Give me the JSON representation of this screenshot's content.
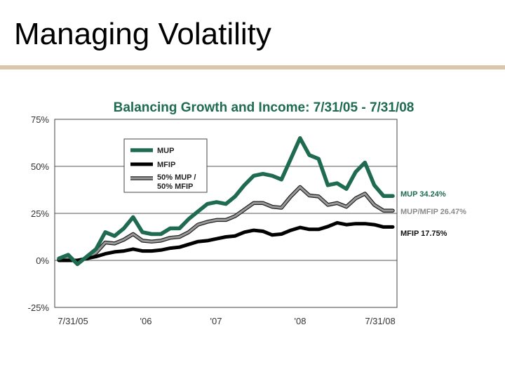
{
  "slide": {
    "title": "Managing Volatility",
    "rule_color": "#dcc6ab"
  },
  "colors": {
    "mup": "#1e6b50",
    "mfip": "#000000",
    "blend": "#9a9a9a",
    "blend_outline": "#222222",
    "title": "#1e6b50"
  },
  "chart_data": {
    "type": "line",
    "title": "Balancing Growth and Income: 7/31/05  - 7/31/08",
    "xlabel": "",
    "ylabel": "",
    "ylim": [
      -25,
      75
    ],
    "y_ticks": [
      {
        "value": 75,
        "label": "75%"
      },
      {
        "value": 50,
        "label": "50%"
      },
      {
        "value": 25,
        "label": "25%"
      },
      {
        "value": 0,
        "label": "0%"
      },
      {
        "value": -25,
        "label": "-25%"
      }
    ],
    "x_range": [
      0,
      36
    ],
    "x_ticks": [
      {
        "month": 0,
        "label": "7/31/05"
      },
      {
        "month": 11,
        "label": "'06"
      },
      {
        "month": 21,
        "label": "'07"
      },
      {
        "month": 33,
        "label": "'08"
      },
      {
        "month": 45,
        "label": "7/31/08"
      }
    ],
    "x_tick_note": "x positions of the tick labels follow the original figure",
    "series": [
      {
        "name": "MUP",
        "key": "mup",
        "end_label": "MUP 34.24%",
        "x": [
          0,
          1,
          2,
          3,
          4,
          5,
          6,
          7,
          8,
          9,
          10,
          11,
          12,
          13,
          14,
          15,
          16,
          17,
          18,
          19,
          20,
          21,
          22,
          23,
          24,
          25,
          26,
          27,
          28,
          29,
          30,
          31,
          32,
          33,
          34,
          35,
          36
        ],
        "values": [
          1,
          3,
          -2,
          2,
          6,
          15,
          13,
          17,
          23,
          15,
          14,
          14,
          17,
          17,
          22,
          26,
          30,
          31,
          30,
          34,
          40,
          45,
          46,
          45,
          43,
          54,
          65,
          56,
          54,
          40,
          41,
          38,
          47,
          52,
          40,
          34.24,
          34.24
        ]
      },
      {
        "name": "50% MUP / 50% MFIP",
        "key": "blend",
        "end_label": "MUP/MFIP 26.47%",
        "x": [
          0,
          1,
          2,
          3,
          4,
          5,
          6,
          7,
          8,
          9,
          10,
          11,
          12,
          13,
          14,
          15,
          16,
          17,
          18,
          19,
          20,
          21,
          22,
          23,
          24,
          25,
          26,
          27,
          28,
          29,
          30,
          31,
          32,
          33,
          34,
          35,
          36
        ],
        "values": [
          0.5,
          1.5,
          -1,
          1.5,
          4,
          9.5,
          9,
          11,
          14,
          10.5,
          10,
          10.5,
          12,
          12.5,
          15,
          19,
          20.5,
          21.5,
          21.5,
          23.5,
          27,
          30.5,
          30.5,
          28.5,
          28,
          34,
          39,
          34.5,
          34,
          29.5,
          30.5,
          28.5,
          33,
          35.5,
          29.5,
          26.47,
          26.47
        ]
      },
      {
        "name": "MFIP",
        "key": "mfip",
        "end_label": "MFIP 17.75%",
        "x": [
          0,
          1,
          2,
          3,
          4,
          5,
          6,
          7,
          8,
          9,
          10,
          11,
          12,
          13,
          14,
          15,
          16,
          17,
          18,
          19,
          20,
          21,
          22,
          23,
          24,
          25,
          26,
          27,
          28,
          29,
          30,
          31,
          32,
          33,
          34,
          35,
          36
        ],
        "values": [
          0,
          0,
          0,
          1,
          2,
          3.5,
          4.5,
          5,
          6,
          5,
          5,
          5.5,
          6.5,
          7,
          8.5,
          10,
          10.5,
          11.5,
          12.5,
          13,
          15,
          16,
          15.5,
          13.5,
          14,
          16,
          17.5,
          16.5,
          16.5,
          18,
          20,
          19,
          19.5,
          19.5,
          19,
          17.75,
          17.75
        ]
      }
    ],
    "legend": {
      "placement": "top-left",
      "entries": [
        "MUP",
        "MFIP",
        "50% MUP /",
        "50% MFIP"
      ]
    }
  }
}
